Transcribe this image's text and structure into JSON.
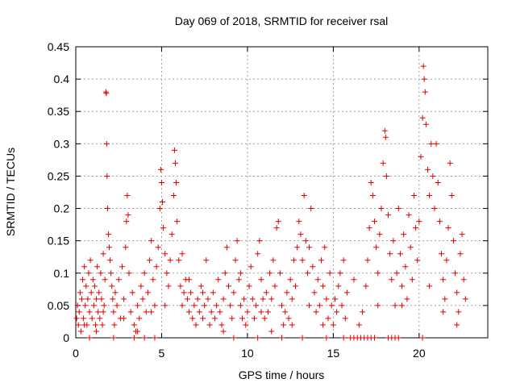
{
  "chart_data": {
    "type": "scatter",
    "title": "Day 069 of 2018, SRMTID for receiver rsal",
    "xlabel": "GPS time / hours",
    "ylabel": "SRMTID / TECUs",
    "xlim": [
      0,
      24
    ],
    "ylim": [
      0,
      0.45
    ],
    "xticks": [
      0,
      5,
      10,
      15,
      20
    ],
    "yticks": [
      0,
      0.05,
      0.1,
      0.15,
      0.2,
      0.25,
      0.3,
      0.35,
      0.4,
      0.45
    ],
    "xtick_labels": [
      "0",
      "5",
      "10",
      "15",
      "20"
    ],
    "ytick_labels": [
      "0",
      "0.05",
      "0.1",
      "0.15",
      "0.2",
      "0.25",
      "0.3",
      "0.35",
      "0.4",
      "0.45"
    ],
    "grid": true,
    "marker": "+",
    "color": "#e00000",
    "series": [
      {
        "name": "SRMTID",
        "points": [
          [
            0.05,
            0.03
          ],
          [
            0.1,
            0.05
          ],
          [
            0.15,
            0.02
          ],
          [
            0.2,
            0.04
          ],
          [
            0.25,
            0.07
          ],
          [
            0.3,
            0.01
          ],
          [
            0.35,
            0.06
          ],
          [
            0.4,
            0.09
          ],
          [
            0.45,
            0.03
          ],
          [
            0.5,
            0.11
          ],
          [
            0.55,
            0.05
          ],
          [
            0.6,
            0.08
          ],
          [
            0.65,
            0.02
          ],
          [
            0.7,
            0.06
          ],
          [
            0.75,
            0.1
          ],
          [
            0.8,
            0.04
          ],
          [
            0.85,
            0.12
          ],
          [
            0.9,
            0.07
          ],
          [
            0.95,
            0.03
          ],
          [
            1.0,
            0.09
          ],
          [
            1.05,
            0.05
          ],
          [
            1.1,
            0.08
          ],
          [
            1.15,
            0.02
          ],
          [
            1.2,
            0.06
          ],
          [
            1.25,
            0.11
          ],
          [
            1.3,
            0.04
          ],
          [
            1.35,
            0.07
          ],
          [
            1.4,
            0.03
          ],
          [
            1.45,
            0.1
          ],
          [
            1.5,
            0.06
          ],
          [
            1.55,
            0.02
          ],
          [
            1.6,
            0.13
          ],
          [
            1.65,
            0.05
          ],
          [
            1.7,
            0.09
          ],
          [
            1.75,
            0.38
          ],
          [
            1.78,
            0.378
          ],
          [
            1.8,
            0.3
          ],
          [
            1.82,
            0.25
          ],
          [
            1.85,
            0.2
          ],
          [
            1.9,
            0.16
          ],
          [
            1.95,
            0.14
          ],
          [
            2.0,
            0.12
          ],
          [
            2.05,
            0.1
          ],
          [
            2.1,
            0.08
          ],
          [
            2.15,
            0.06
          ],
          [
            2.2,
            0.04
          ],
          [
            2.25,
            0.02
          ],
          [
            2.3,
            0.07
          ],
          [
            2.4,
            0.05
          ],
          [
            2.5,
            0.09
          ],
          [
            2.6,
            0.03
          ],
          [
            2.7,
            0.11
          ],
          [
            2.8,
            0.06
          ],
          [
            2.9,
            0.14
          ],
          [
            2.95,
            0.18
          ],
          [
            3.0,
            0.22
          ],
          [
            3.05,
            0.19
          ],
          [
            3.1,
            0.1
          ],
          [
            3.2,
            0.04
          ],
          [
            3.3,
            0.07
          ],
          [
            3.4,
            0.02
          ],
          [
            3.5,
            0.01
          ],
          [
            3.6,
            0.05
          ],
          [
            3.7,
            0.03
          ],
          [
            3.8,
            0.08
          ],
          [
            3.9,
            0.06
          ],
          [
            4.0,
            0.1
          ],
          [
            4.1,
            0.04
          ],
          [
            4.2,
            0.07
          ],
          [
            4.3,
            0.12
          ],
          [
            4.4,
            0.15
          ],
          [
            4.5,
            0.09
          ],
          [
            4.6,
            0.05
          ],
          [
            4.7,
            0.11
          ],
          [
            4.8,
            0.14
          ],
          [
            4.9,
            0.2
          ],
          [
            4.95,
            0.26
          ],
          [
            5.0,
            0.24
          ],
          [
            5.05,
            0.21
          ],
          [
            5.1,
            0.17
          ],
          [
            5.2,
            0.13
          ],
          [
            5.3,
            0.1
          ],
          [
            5.4,
            0.08
          ],
          [
            5.5,
            0.12
          ],
          [
            5.6,
            0.16
          ],
          [
            5.7,
            0.22
          ],
          [
            5.75,
            0.29
          ],
          [
            5.8,
            0.27
          ],
          [
            5.85,
            0.24
          ],
          [
            5.9,
            0.18
          ],
          [
            6.0,
            0.12
          ],
          [
            6.1,
            0.08
          ],
          [
            6.2,
            0.05
          ],
          [
            6.3,
            0.07
          ],
          [
            6.4,
            0.09
          ],
          [
            6.5,
            0.06
          ],
          [
            6.6,
            0.04
          ],
          [
            6.7,
            0.07
          ],
          [
            6.8,
            0.03
          ],
          [
            6.9,
            0.05
          ],
          [
            7.0,
            0.02
          ],
          [
            7.1,
            0.06
          ],
          [
            7.2,
            0.04
          ],
          [
            7.3,
            0.08
          ],
          [
            7.4,
            0.03
          ],
          [
            7.5,
            0.05
          ],
          [
            7.6,
            0.12
          ],
          [
            7.7,
            0.06
          ],
          [
            7.8,
            0.02
          ],
          [
            7.9,
            0.04
          ],
          [
            8.0,
            0.07
          ],
          [
            8.1,
            0.03
          ],
          [
            8.2,
            0.05
          ],
          [
            8.3,
            0.09
          ],
          [
            8.4,
            0.04
          ],
          [
            8.5,
            0.02
          ],
          [
            8.6,
            0.06
          ],
          [
            8.7,
            0.1
          ],
          [
            8.8,
            0.14
          ],
          [
            8.9,
            0.08
          ],
          [
            9.0,
            0.05
          ],
          [
            9.1,
            0.03
          ],
          [
            9.2,
            0.07
          ],
          [
            9.3,
            0.12
          ],
          [
            9.4,
            0.15
          ],
          [
            9.5,
            0.09
          ],
          [
            9.6,
            0.05
          ],
          [
            9.7,
            0.03
          ],
          [
            9.8,
            0.06
          ],
          [
            9.9,
            0.02
          ],
          [
            10.0,
            0.04
          ],
          [
            10.1,
            0.08
          ],
          [
            10.2,
            0.11
          ],
          [
            10.3,
            0.06
          ],
          [
            10.4,
            0.03
          ],
          [
            10.5,
            0.05
          ],
          [
            10.6,
            0.13
          ],
          [
            10.7,
            0.15
          ],
          [
            10.8,
            0.09
          ],
          [
            10.9,
            0.06
          ],
          [
            11.0,
            0.03
          ],
          [
            11.1,
            0.07
          ],
          [
            11.2,
            0.04
          ],
          [
            11.3,
            0.1
          ],
          [
            11.4,
            0.06
          ],
          [
            11.5,
            0.12
          ],
          [
            11.6,
            0.08
          ],
          [
            11.7,
            0.17
          ],
          [
            11.8,
            0.18
          ],
          [
            11.9,
            0.1
          ],
          [
            12.0,
            0.05
          ],
          [
            12.1,
            0.02
          ],
          [
            12.2,
            0.04
          ],
          [
            12.3,
            0.07
          ],
          [
            12.4,
            0.03
          ],
          [
            12.5,
            0.09
          ],
          [
            12.6,
            0.06
          ],
          [
            12.7,
            0.12
          ],
          [
            12.8,
            0.08
          ],
          [
            12.9,
            0.14
          ],
          [
            13.0,
            0.18
          ],
          [
            13.1,
            0.16
          ],
          [
            13.2,
            0.12
          ],
          [
            13.3,
            0.22
          ],
          [
            13.4,
            0.15
          ],
          [
            13.5,
            0.1
          ],
          [
            13.6,
            0.14
          ],
          [
            13.7,
            0.2
          ],
          [
            13.8,
            0.11
          ],
          [
            13.9,
            0.07
          ],
          [
            14.0,
            0.04
          ],
          [
            14.1,
            0.09
          ],
          [
            14.2,
            0.05
          ],
          [
            14.3,
            0.12
          ],
          [
            14.4,
            0.08
          ],
          [
            14.5,
            0.14
          ],
          [
            14.6,
            0.06
          ],
          [
            14.7,
            0.03
          ],
          [
            14.8,
            0.1
          ],
          [
            14.9,
            0.05
          ],
          [
            15.0,
            0.02
          ],
          [
            15.1,
            0.06
          ],
          [
            15.2,
            0.04
          ],
          [
            15.3,
            0.08
          ],
          [
            15.4,
            0.1
          ],
          [
            15.5,
            0.05
          ],
          [
            15.6,
            0.12
          ],
          [
            15.7,
            0.03
          ],
          [
            15.8,
            0.07
          ],
          [
            16.0,
            0.0
          ],
          [
            16.2,
            0.0
          ],
          [
            16.4,
            0.0
          ],
          [
            16.6,
            0.0
          ],
          [
            16.8,
            0.0
          ],
          [
            17.0,
            0.0
          ],
          [
            17.2,
            0.0
          ],
          [
            17.4,
            0.0
          ],
          [
            16.5,
            0.02
          ],
          [
            16.7,
            0.04
          ],
          [
            16.9,
            0.08
          ],
          [
            17.0,
            0.12
          ],
          [
            17.1,
            0.17
          ],
          [
            17.2,
            0.24
          ],
          [
            17.3,
            0.22
          ],
          [
            17.4,
            0.18
          ],
          [
            17.5,
            0.14
          ],
          [
            17.6,
            0.1
          ],
          [
            17.7,
            0.16
          ],
          [
            17.8,
            0.2
          ],
          [
            17.9,
            0.27
          ],
          [
            18.0,
            0.32
          ],
          [
            18.05,
            0.31
          ],
          [
            18.1,
            0.25
          ],
          [
            18.2,
            0.19
          ],
          [
            18.3,
            0.13
          ],
          [
            18.4,
            0.09
          ],
          [
            18.5,
            0.15
          ],
          [
            18.6,
            0.05
          ],
          [
            18.7,
            0.1
          ],
          [
            18.8,
            0.2
          ],
          [
            18.9,
            0.13
          ],
          [
            19.0,
            0.08
          ],
          [
            19.1,
            0.16
          ],
          [
            19.2,
            0.11
          ],
          [
            19.3,
            0.06
          ],
          [
            19.4,
            0.19
          ],
          [
            19.5,
            0.14
          ],
          [
            19.6,
            0.09
          ],
          [
            19.7,
            0.22
          ],
          [
            19.8,
            0.17
          ],
          [
            19.9,
            0.12
          ],
          [
            20.0,
            0.18
          ],
          [
            20.1,
            0.28
          ],
          [
            20.2,
            0.34
          ],
          [
            20.25,
            0.42
          ],
          [
            20.3,
            0.4
          ],
          [
            20.35,
            0.38
          ],
          [
            20.4,
            0.33
          ],
          [
            20.5,
            0.26
          ],
          [
            20.6,
            0.22
          ],
          [
            20.7,
            0.3
          ],
          [
            20.8,
            0.25
          ],
          [
            20.9,
            0.2
          ],
          [
            21.0,
            0.3
          ],
          [
            21.1,
            0.24
          ],
          [
            21.2,
            0.18
          ],
          [
            21.3,
            0.13
          ],
          [
            21.4,
            0.09
          ],
          [
            21.5,
            0.06
          ],
          [
            21.6,
            0.12
          ],
          [
            21.7,
            0.17
          ],
          [
            21.8,
            0.27
          ],
          [
            21.9,
            0.22
          ],
          [
            22.0,
            0.15
          ],
          [
            22.1,
            0.1
          ],
          [
            22.2,
            0.07
          ],
          [
            22.3,
            0.04
          ],
          [
            22.4,
            0.13
          ],
          [
            22.5,
            0.16
          ],
          [
            22.6,
            0.09
          ],
          [
            22.7,
            0.06
          ],
          [
            18.2,
            0.0
          ],
          [
            18.4,
            0.0
          ],
          [
            18.6,
            0.0
          ],
          [
            18.8,
            0.0
          ],
          [
            20.2,
            0.0
          ],
          [
            0.5,
            0.02
          ],
          [
            1.2,
            0.01
          ],
          [
            2.8,
            0.03
          ],
          [
            3.6,
            0.01
          ],
          [
            4.4,
            0.04
          ],
          [
            6.6,
            0.09
          ],
          [
            7.4,
            0.07
          ],
          [
            8.6,
            0.01
          ],
          [
            9.6,
            0.1
          ],
          [
            10.8,
            0.04
          ],
          [
            11.4,
            0.01
          ],
          [
            12.6,
            0.02
          ],
          [
            13.6,
            0.05
          ],
          [
            14.4,
            0.02
          ],
          [
            19.0,
            0.05
          ],
          [
            20.6,
            0.08
          ],
          [
            21.4,
            0.04
          ],
          [
            22.2,
            0.02
          ],
          [
            16.2,
            0.09
          ],
          [
            17.6,
            0.05
          ],
          [
            5.2,
            0.05
          ],
          [
            6.2,
            0.13
          ],
          [
            1.6,
            0.04
          ],
          [
            0.8,
            0.0
          ],
          [
            2.2,
            0.0
          ],
          [
            3.4,
            0.0
          ],
          [
            4.0,
            0.0
          ],
          [
            4.6,
            0.0
          ],
          [
            9.2,
            0.0
          ],
          [
            10.6,
            0.0
          ],
          [
            12.0,
            0.0
          ],
          [
            13.2,
            0.0
          ],
          [
            14.6,
            0.0
          ],
          [
            15.6,
            0.0
          ]
        ]
      }
    ]
  }
}
